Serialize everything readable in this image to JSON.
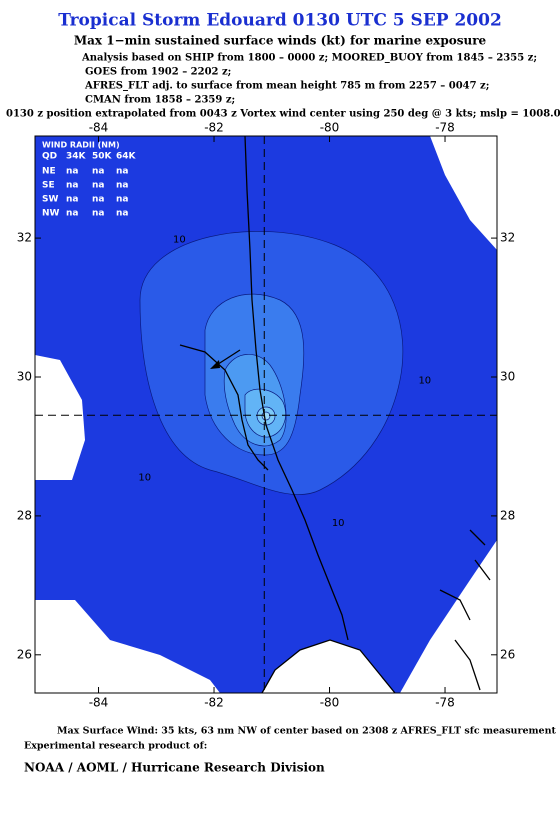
{
  "header": {
    "title": "Tropical Storm Edouard 0130 UTC 5 SEP 2002",
    "subtitle": "Max 1−min sustained surface winds (kt) for marine exposure",
    "analysis": [
      "Analysis based on  SHIP from 1800 – 0000 z;  MOORED_BUOY from 1845 – 2355 z;",
      "GOES from 1902 – 2202 z;",
      "AFRES_FLT adj. to surface from mean height 785 m from 2257 – 0047 z;",
      "CMAN from 1858 – 2359 z;",
      "0130 z position extrapolated from 0043 z Vortex wind center using 250 deg @ 3 kts; mslp = 1008.0 mb"
    ]
  },
  "map": {
    "xlim": [
      -85.1,
      -77.1
    ],
    "ylim": [
      25.45,
      33.47
    ],
    "xticks": [
      -84,
      -82,
      -80,
      -78
    ],
    "yticks": [
      26,
      28,
      30,
      32
    ],
    "center": [
      -81.13,
      29.45
    ],
    "wind_radii": {
      "title": "WIND RADII (NM)",
      "columns": [
        "QD",
        "34K",
        "50K",
        "64K"
      ],
      "rows": [
        [
          "NE",
          "na",
          "na",
          "na"
        ],
        [
          "SE",
          "na",
          "na",
          "na"
        ],
        [
          "SW",
          "na",
          "na",
          "na"
        ],
        [
          "NW",
          "na",
          "na",
          "na"
        ]
      ]
    },
    "contour_labels": [
      {
        "text": "10",
        "lon": -82.6,
        "lat": 31.98
      },
      {
        "text": "10",
        "lon": -83.2,
        "lat": 28.55
      },
      {
        "text": "10",
        "lon": -79.85,
        "lat": 27.9
      },
      {
        "text": "10",
        "lon": -78.35,
        "lat": 29.95
      }
    ]
  },
  "footer": {
    "max_wind": "Max Surface Wind: 35 kts, 63 nm NW of center based on 2308 z AFRES_FLT sfc measurement",
    "product": "Experimental research product of:",
    "org": "NOAA / AOML / Hurricane Research Division"
  }
}
